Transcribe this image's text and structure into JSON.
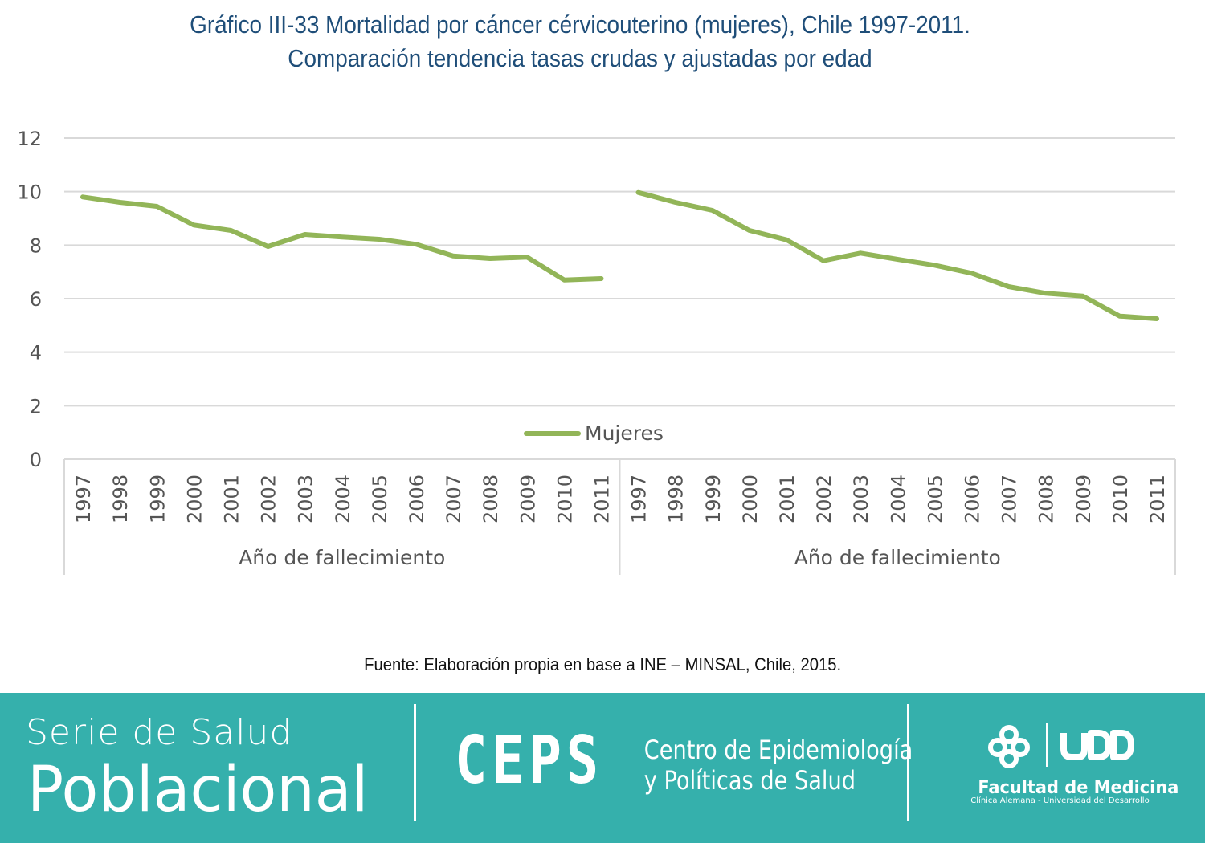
{
  "title_lines": [
    "Gráfico III-33 Mortalidad por cáncer cérvicouterino (mujeres), Chile 1997-2011.",
    "Comparación tendencia tasas crudas y ajustadas por edad"
  ],
  "source": "Fuente: Elaboración propia en base a INE – MINSAL, Chile, 2015.",
  "chart_data": {
    "type": "line",
    "ylim": [
      0,
      12
    ],
    "yticks": [
      "0",
      "2",
      "4",
      "6",
      "8",
      "10",
      "12"
    ],
    "grid": true,
    "legend": {
      "label": "Mujeres",
      "position": "bottom-center"
    },
    "series_color": "#92b558",
    "groups": [
      {
        "xlabel": "Año de fallecimiento",
        "categories": [
          "1997",
          "1998",
          "1999",
          "2000",
          "2001",
          "2002",
          "2003",
          "2004",
          "2005",
          "2006",
          "2007",
          "2008",
          "2009",
          "2010",
          "2011"
        ],
        "series": [
          {
            "name": "Mujeres",
            "values": [
              9.8,
              9.6,
              9.45,
              8.75,
              8.55,
              7.95,
              8.4,
              8.3,
              8.22,
              8.03,
              7.6,
              7.5,
              7.55,
              6.7,
              6.75
            ]
          }
        ]
      },
      {
        "xlabel": "Año de fallecimiento",
        "categories": [
          "1997",
          "1998",
          "1999",
          "2000",
          "2001",
          "2002",
          "2003",
          "2004",
          "2005",
          "2006",
          "2007",
          "2008",
          "2009",
          "2010",
          "2011"
        ],
        "series": [
          {
            "name": "Mujeres",
            "values": [
              9.97,
              9.6,
              9.3,
              8.55,
              8.2,
              7.42,
              7.7,
              7.47,
              7.25,
              6.95,
              6.45,
              6.2,
              6.1,
              5.35,
              5.25
            ]
          }
        ]
      }
    ]
  },
  "footer": {
    "serie_line1": "Serie de Salud",
    "serie_line2": "Poblacional",
    "ceps_logo": "CEPS",
    "ceps_name_lines": [
      "Centro de Epidemiología",
      "y Políticas de Salud"
    ],
    "udd_logo": "UDD",
    "facultad": "Facultad de Medicina",
    "clinica": "Clínica Alemana - Universidad del Desarrollo"
  }
}
